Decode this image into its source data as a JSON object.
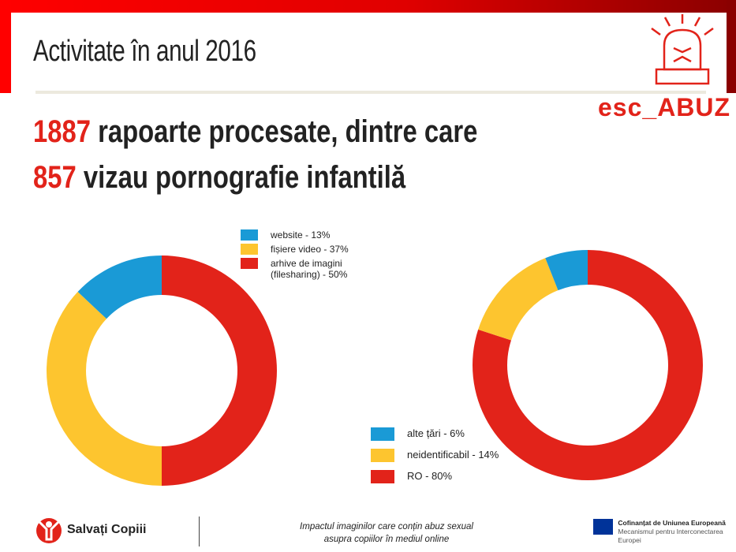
{
  "slide": {
    "title": "Activitate în anul 2016",
    "headline1": {
      "number": "1887",
      "text": " rapoarte procesate, dintre care"
    },
    "headline2": {
      "number": "857",
      "text": " vizau pornografie infantilă"
    },
    "brand": "esc_ABUZ"
  },
  "footer": {
    "org": "Salvați Copiii",
    "project_line1": "Impactul imaginilor care conțin abuz sexual",
    "project_line2": "asupra copiilor în mediul online",
    "eu_line1": "Cofinanțat de Uniunea Europeană",
    "eu_line2": "Mecanismul pentru Interconectarea Europei"
  },
  "colors": {
    "red": "#e2231a",
    "yellow": "#fdc52f",
    "blue": "#1a9ad6"
  },
  "chart_data": [
    {
      "type": "pie",
      "subtype": "donut",
      "title": "",
      "legend_placement": "top-right",
      "slices": [
        {
          "label": "arhive de imagini (filesharing) - 50%",
          "value": 50,
          "color": "#e2231a"
        },
        {
          "label": "fișiere video - 37%",
          "value": 37,
          "color": "#fdc52f"
        },
        {
          "label": "website - 13%",
          "value": 13,
          "color": "#1a9ad6"
        }
      ],
      "legend": [
        {
          "label": "website - 13%",
          "color": "#1a9ad6"
        },
        {
          "label": "fișiere video - 37%",
          "color": "#fdc52f"
        },
        {
          "label": "arhive de imagini (filesharing) - 50%",
          "color": "#e2231a"
        }
      ]
    },
    {
      "type": "pie",
      "subtype": "donut",
      "title": "",
      "legend_placement": "bottom-left",
      "slices": [
        {
          "label": "RO - 80%",
          "value": 80,
          "color": "#e2231a"
        },
        {
          "label": "neidentificabil - 14%",
          "value": 14,
          "color": "#fdc52f"
        },
        {
          "label": "alte țări - 6%",
          "value": 6,
          "color": "#1a9ad6"
        }
      ],
      "legend": [
        {
          "label": "alte țări - 6%",
          "color": "#1a9ad6"
        },
        {
          "label": "neidentificabil - 14%",
          "color": "#fdc52f"
        },
        {
          "label": "RO - 80%",
          "color": "#e2231a"
        }
      ]
    }
  ]
}
